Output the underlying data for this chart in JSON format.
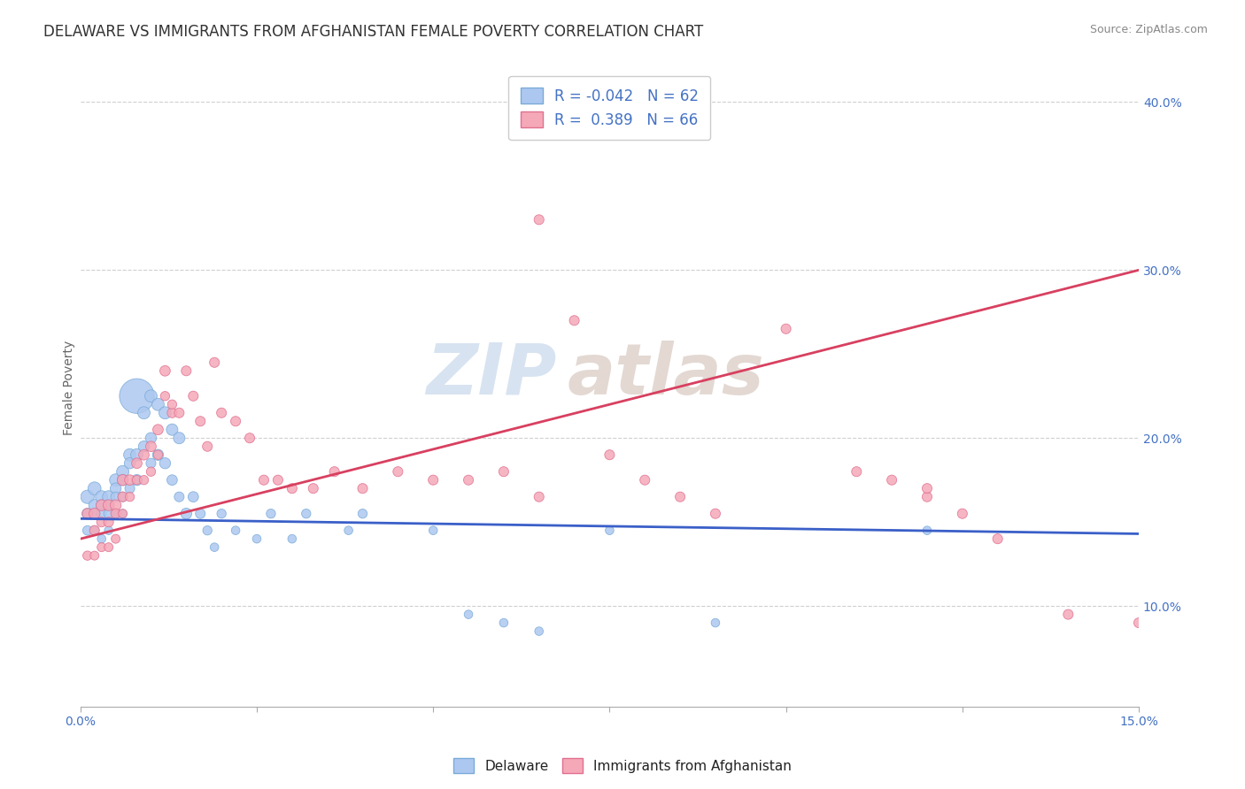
{
  "title": "DELAWARE VS IMMIGRANTS FROM AFGHANISTAN FEMALE POVERTY CORRELATION CHART",
  "source": "Source: ZipAtlas.com",
  "ylabel": "Female Poverty",
  "xlim": [
    0.0,
    0.15
  ],
  "ylim": [
    0.04,
    0.42
  ],
  "xticks": [
    0.0,
    0.025,
    0.05,
    0.075,
    0.1,
    0.125,
    0.15
  ],
  "yticks_right": [
    0.1,
    0.2,
    0.3,
    0.4
  ],
  "ytick_right_labels": [
    "10.0%",
    "20.0%",
    "30.0%",
    "40.0%"
  ],
  "series1_color": "#adc8f0",
  "series1_edge": "#7aaad8",
  "series2_color": "#f5a8b8",
  "series2_edge": "#e07090",
  "line1_color": "#3a5fc8",
  "line2_color": "#d84060",
  "R1": -0.042,
  "N1": 62,
  "R2": 0.389,
  "N2": 66,
  "legend_label1": "Delaware",
  "legend_label2": "Immigrants from Afghanistan",
  "watermark_zip": "ZIP",
  "watermark_atlas": "atlas",
  "background_color": "#ffffff",
  "title_fontsize": 12,
  "axis_label_fontsize": 10,
  "tick_fontsize": 10,
  "legend_fontsize": 12,
  "line1_x0": 0.0,
  "line1_y0": 0.152,
  "line1_x1": 0.15,
  "line1_y1": 0.143,
  "line2_x0": 0.0,
  "line2_y0": 0.14,
  "line2_x1": 0.15,
  "line2_y1": 0.3,
  "series1_x": [
    0.001,
    0.001,
    0.001,
    0.002,
    0.002,
    0.002,
    0.002,
    0.003,
    0.003,
    0.003,
    0.003,
    0.004,
    0.004,
    0.004,
    0.004,
    0.005,
    0.005,
    0.005,
    0.005,
    0.006,
    0.006,
    0.006,
    0.006,
    0.007,
    0.007,
    0.007,
    0.008,
    0.008,
    0.008,
    0.009,
    0.009,
    0.01,
    0.01,
    0.01,
    0.011,
    0.011,
    0.012,
    0.012,
    0.013,
    0.013,
    0.014,
    0.014,
    0.015,
    0.016,
    0.017,
    0.018,
    0.019,
    0.02,
    0.022,
    0.025,
    0.027,
    0.03,
    0.032,
    0.038,
    0.04,
    0.05,
    0.055,
    0.06,
    0.065,
    0.075,
    0.09,
    0.12
  ],
  "series1_y": [
    0.165,
    0.155,
    0.145,
    0.17,
    0.16,
    0.155,
    0.145,
    0.165,
    0.16,
    0.155,
    0.14,
    0.165,
    0.16,
    0.155,
    0.145,
    0.175,
    0.17,
    0.165,
    0.155,
    0.18,
    0.175,
    0.165,
    0.155,
    0.19,
    0.185,
    0.17,
    0.225,
    0.19,
    0.175,
    0.215,
    0.195,
    0.225,
    0.2,
    0.185,
    0.22,
    0.19,
    0.215,
    0.185,
    0.205,
    0.175,
    0.2,
    0.165,
    0.155,
    0.165,
    0.155,
    0.145,
    0.135,
    0.155,
    0.145,
    0.14,
    0.155,
    0.14,
    0.155,
    0.145,
    0.155,
    0.145,
    0.095,
    0.09,
    0.085,
    0.145,
    0.09,
    0.145
  ],
  "series1_size": [
    30,
    20,
    15,
    28,
    22,
    18,
    14,
    25,
    20,
    16,
    12,
    25,
    20,
    16,
    12,
    25,
    20,
    16,
    12,
    25,
    20,
    16,
    12,
    25,
    20,
    16,
    200,
    25,
    20,
    25,
    20,
    25,
    20,
    16,
    25,
    20,
    25,
    20,
    22,
    18,
    22,
    16,
    20,
    18,
    16,
    14,
    12,
    14,
    12,
    12,
    14,
    12,
    14,
    12,
    14,
    12,
    12,
    12,
    12,
    12,
    12,
    12
  ],
  "series2_x": [
    0.001,
    0.001,
    0.002,
    0.002,
    0.002,
    0.003,
    0.003,
    0.003,
    0.004,
    0.004,
    0.004,
    0.005,
    0.005,
    0.005,
    0.006,
    0.006,
    0.006,
    0.007,
    0.007,
    0.008,
    0.008,
    0.009,
    0.009,
    0.01,
    0.01,
    0.011,
    0.011,
    0.012,
    0.012,
    0.013,
    0.013,
    0.014,
    0.015,
    0.016,
    0.017,
    0.018,
    0.019,
    0.02,
    0.022,
    0.024,
    0.026,
    0.028,
    0.03,
    0.033,
    0.036,
    0.04,
    0.045,
    0.05,
    0.055,
    0.06,
    0.065,
    0.07,
    0.075,
    0.08,
    0.085,
    0.09,
    0.1,
    0.11,
    0.115,
    0.12,
    0.125,
    0.13,
    0.14,
    0.15,
    0.12,
    0.065
  ],
  "series2_y": [
    0.155,
    0.13,
    0.155,
    0.145,
    0.13,
    0.16,
    0.15,
    0.135,
    0.16,
    0.15,
    0.135,
    0.16,
    0.155,
    0.14,
    0.175,
    0.165,
    0.155,
    0.175,
    0.165,
    0.185,
    0.175,
    0.19,
    0.175,
    0.195,
    0.18,
    0.205,
    0.19,
    0.24,
    0.225,
    0.215,
    0.22,
    0.215,
    0.24,
    0.225,
    0.21,
    0.195,
    0.245,
    0.215,
    0.21,
    0.2,
    0.175,
    0.175,
    0.17,
    0.17,
    0.18,
    0.17,
    0.18,
    0.175,
    0.175,
    0.18,
    0.165,
    0.27,
    0.19,
    0.175,
    0.165,
    0.155,
    0.265,
    0.18,
    0.175,
    0.165,
    0.155,
    0.14,
    0.095,
    0.09,
    0.17,
    0.33
  ],
  "series2_size": [
    18,
    14,
    20,
    16,
    13,
    20,
    16,
    13,
    20,
    16,
    13,
    20,
    16,
    13,
    20,
    16,
    13,
    18,
    14,
    18,
    14,
    18,
    14,
    18,
    14,
    18,
    14,
    18,
    14,
    16,
    14,
    16,
    16,
    16,
    16,
    16,
    16,
    16,
    16,
    16,
    16,
    16,
    16,
    16,
    16,
    16,
    16,
    16,
    16,
    16,
    16,
    16,
    16,
    16,
    16,
    16,
    16,
    16,
    16,
    16,
    16,
    16,
    16,
    16,
    16,
    16
  ]
}
